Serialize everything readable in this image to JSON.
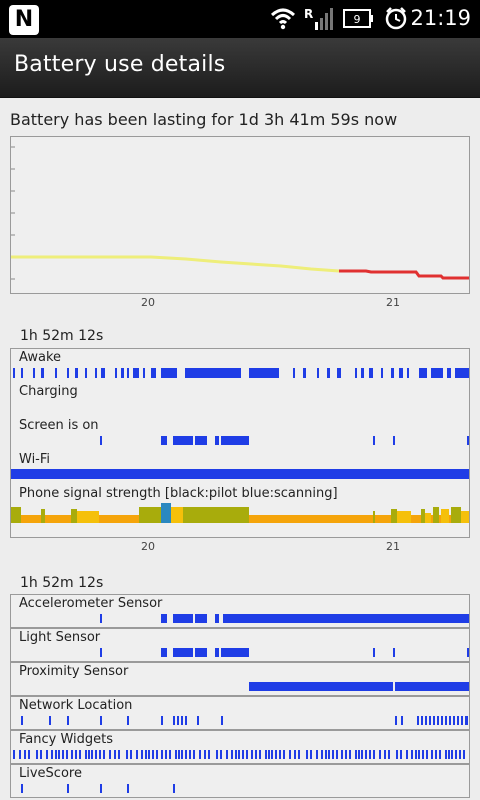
{
  "status_bar": {
    "clock": "21:19",
    "battery_level": "9",
    "network_roaming": "R",
    "notification_letter": "N",
    "icons": [
      "notification-icon",
      "wifi-icon",
      "signal-icon",
      "battery-icon",
      "alarm-icon"
    ]
  },
  "header": {
    "title": "Battery use details"
  },
  "battery": {
    "lasting_text": "Battery has been lasting for 1d 3h 41m 59s now",
    "x_ticks": [
      "20",
      "21"
    ]
  },
  "history": {
    "duration": "1h 52m 12s",
    "rows": [
      {
        "label": "Awake"
      },
      {
        "label": "Charging"
      },
      {
        "label": "Screen is on"
      },
      {
        "label": "Wi-Fi"
      },
      {
        "label": "Phone signal strength [black:pilot blue:scanning]"
      }
    ],
    "x_ticks": [
      "20",
      "21"
    ]
  },
  "sensors": {
    "duration": "1h 52m 12s",
    "items": [
      {
        "label": "Accelerometer Sensor"
      },
      {
        "label": "Light Sensor"
      },
      {
        "label": "Proximity Sensor"
      },
      {
        "label": "Network Location"
      },
      {
        "label": "Fancy Widgets"
      },
      {
        "label": "LiveScore"
      }
    ]
  },
  "colors": {
    "usage_bar": "#1f3de6",
    "battery_line_normal": "#eeee7a",
    "battery_line_low": "#e03030",
    "signal_orange": "#f5a40a",
    "signal_olive": "#a8ac0c",
    "signal_yellow": "#f5c00a",
    "signal_blue": "#2a88c0"
  }
}
